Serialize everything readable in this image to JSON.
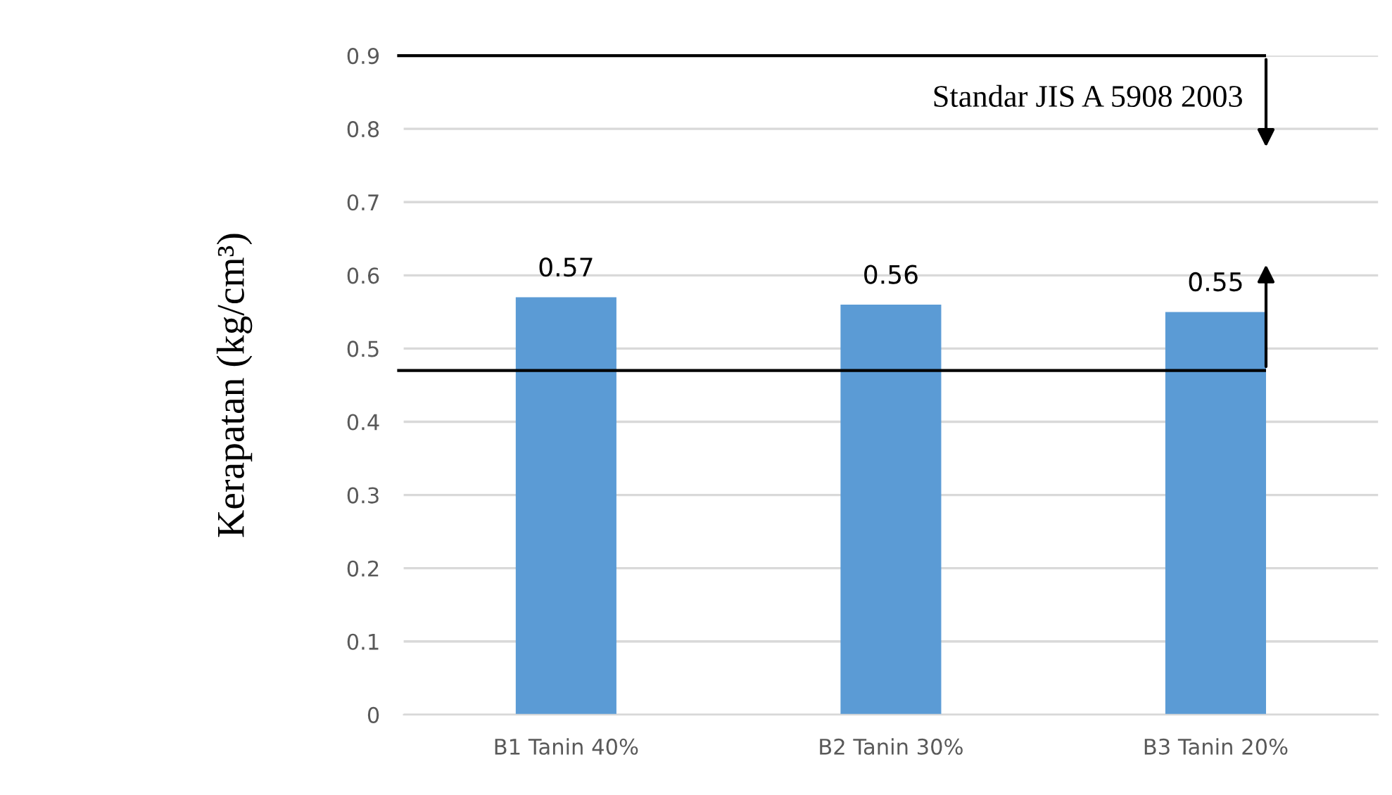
{
  "chart_data": {
    "type": "bar",
    "ylabel": "Kerapatan (kg/cm³)",
    "categories": [
      "B1 Tanin 40%",
      "B2 Tanin 30%",
      "B3 Tanin 20%"
    ],
    "values": [
      0.57,
      0.56,
      0.55
    ],
    "color": "#5b9bd5",
    "ylim": [
      0,
      0.9
    ],
    "yticks": [
      0,
      0.1,
      0.2,
      0.3,
      0.4,
      0.5,
      0.6,
      0.7,
      0.8,
      0.9
    ],
    "grid": "y",
    "data_labels": true,
    "ref_lines": [
      {
        "axis": "y",
        "value": 0.9,
        "label": "Standar JIS A 5908 2003",
        "color": "#000000"
      },
      {
        "axis": "y",
        "value": 0.47,
        "color": "#000000"
      }
    ]
  }
}
